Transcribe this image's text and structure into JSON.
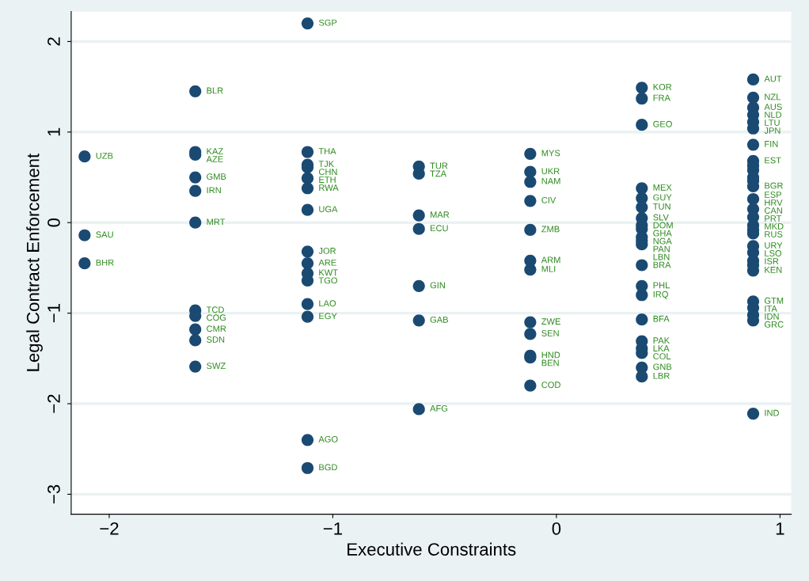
{
  "chart_data": {
    "type": "scatter",
    "xlabel": "Executive Constraints",
    "ylabel": "Legal Contract Enforcement",
    "xlim": [
      -2.17,
      1.05
    ],
    "ylim": [
      -3.22,
      2.33
    ],
    "xticks": [
      {
        "value": -2,
        "label": "−2"
      },
      {
        "value": -1,
        "label": "−1"
      },
      0,
      1
    ],
    "yticks": [
      {
        "value": -3,
        "label": "−3"
      },
      {
        "value": -2,
        "label": "−2"
      },
      {
        "value": -1,
        "label": "−1"
      },
      0,
      1,
      2
    ],
    "grid": "y",
    "marker": "circle",
    "series": [
      {
        "color": "#1a4a72",
        "x": [
          -2.11,
          -2.11,
          -2.11,
          -1.615,
          -1.615,
          -1.615,
          -1.615,
          -1.615,
          -1.615,
          -1.615,
          -1.615,
          -1.615,
          -1.615,
          -1.615,
          -1.113,
          -1.113,
          -1.113,
          -1.113,
          -1.113,
          -1.113,
          -1.113,
          -1.113,
          -1.113,
          -1.113,
          -1.113,
          -1.113,
          -1.113,
          -1.113,
          -1.113,
          -0.615,
          -0.615,
          -0.615,
          -0.615,
          -0.615,
          -0.615,
          -0.615,
          -0.117,
          -0.117,
          -0.117,
          -0.117,
          -0.117,
          -0.117,
          -0.117,
          -0.117,
          -0.117,
          -0.117,
          -0.117,
          -0.117,
          0.382,
          0.382,
          0.382,
          0.382,
          0.382,
          0.382,
          0.382,
          0.382,
          0.382,
          0.382,
          0.382,
          0.382,
          0.382,
          0.382,
          0.382,
          0.382,
          0.382,
          0.382,
          0.382,
          0.382,
          0.382,
          0.88,
          0.88,
          0.88,
          0.88,
          0.88,
          0.88,
          0.88,
          0.88,
          0.88,
          0.88,
          0.88,
          0.88,
          0.88,
          0.88,
          0.88,
          0.88,
          0.88,
          0.88,
          0.88,
          0.88,
          0.88,
          0.88,
          0.88,
          0.88,
          0.88,
          0.88,
          0.88,
          0.88,
          0.88
        ],
        "values": [
          0.73,
          -0.14,
          -0.45,
          1.45,
          0.78,
          0.75,
          0.5,
          0.35,
          0.0,
          -0.97,
          -1.03,
          -1.18,
          -1.3,
          -1.59,
          2.2,
          0.78,
          0.64,
          0.61,
          0.49,
          0.38,
          0.14,
          -0.32,
          -0.45,
          -0.56,
          -0.64,
          -0.9,
          -1.04,
          -2.4,
          -2.71,
          0.62,
          0.54,
          0.08,
          -0.07,
          -0.7,
          -1.08,
          -2.06,
          0.76,
          0.56,
          0.45,
          0.24,
          -0.08,
          -0.42,
          -0.52,
          -1.1,
          -1.23,
          -1.47,
          -1.49,
          -1.8,
          1.49,
          1.37,
          1.08,
          0.38,
          0.27,
          0.17,
          0.05,
          -0.03,
          -0.07,
          -0.16,
          -0.24,
          -0.47,
          -0.7,
          -0.8,
          -1.07,
          -1.31,
          -1.39,
          -1.44,
          -1.6,
          -1.7,
          -0.2,
          1.58,
          1.38,
          1.27,
          1.19,
          1.04,
          0.86,
          0.68,
          0.58,
          0.5,
          0.4,
          0.26,
          0.15,
          0.06,
          -0.03,
          -0.12,
          -0.26,
          -0.33,
          -0.42,
          -0.53,
          -0.87,
          -0.94,
          -1.02,
          -1.08,
          -2.11,
          1.11,
          0.63,
          0.46,
          -0.08,
          -0.47
        ]
      }
    ],
    "annotations": [
      {
        "text": "UZB",
        "x": -2.11,
        "y": 0.73
      },
      {
        "text": "SAU",
        "x": -2.11,
        "y": -0.14
      },
      {
        "text": "BHR",
        "x": -2.11,
        "y": -0.45
      },
      {
        "text": "BLR",
        "x": -1.615,
        "y": 1.45
      },
      {
        "text": "KAZ",
        "x": -1.615,
        "y": 0.78
      },
      {
        "text": "AZE",
        "x": -1.615,
        "y": 0.75
      },
      {
        "text": "GMB",
        "x": -1.615,
        "y": 0.5
      },
      {
        "text": "IRN",
        "x": -1.615,
        "y": 0.35
      },
      {
        "text": "MRT",
        "x": -1.615,
        "y": 0.0
      },
      {
        "text": "TCD",
        "x": -1.615,
        "y": -0.97
      },
      {
        "text": "COG",
        "x": -1.615,
        "y": -1.03
      },
      {
        "text": "CMR",
        "x": -1.615,
        "y": -1.18
      },
      {
        "text": "SDN",
        "x": -1.615,
        "y": -1.3
      },
      {
        "text": "SWZ",
        "x": -1.615,
        "y": -1.59
      },
      {
        "text": "SGP",
        "x": -1.113,
        "y": 2.2
      },
      {
        "text": "THA",
        "x": -1.113,
        "y": 0.78
      },
      {
        "text": "TJK",
        "x": -1.113,
        "y": 0.64
      },
      {
        "text": "CHN",
        "x": -1.113,
        "y": 0.61
      },
      {
        "text": "ETH",
        "x": -1.113,
        "y": 0.49
      },
      {
        "text": "RWA",
        "x": -1.113,
        "y": 0.38
      },
      {
        "text": "UGA",
        "x": -1.113,
        "y": 0.14
      },
      {
        "text": "JOR",
        "x": -1.113,
        "y": -0.32
      },
      {
        "text": "ARE",
        "x": -1.113,
        "y": -0.45
      },
      {
        "text": "KWT",
        "x": -1.113,
        "y": -0.56
      },
      {
        "text": "TGO",
        "x": -1.113,
        "y": -0.64
      },
      {
        "text": "LAO",
        "x": -1.113,
        "y": -0.9
      },
      {
        "text": "EGY",
        "x": -1.113,
        "y": -1.04
      },
      {
        "text": "AGO",
        "x": -1.113,
        "y": -2.4
      },
      {
        "text": "BGD",
        "x": -1.113,
        "y": -2.71
      },
      {
        "text": "TUR",
        "x": -0.615,
        "y": 0.62
      },
      {
        "text": "TZA",
        "x": -0.615,
        "y": 0.54
      },
      {
        "text": "MAR",
        "x": -0.615,
        "y": 0.08
      },
      {
        "text": "ECU",
        "x": -0.615,
        "y": -0.07
      },
      {
        "text": "GIN",
        "x": -0.615,
        "y": -0.7
      },
      {
        "text": "GAB",
        "x": -0.615,
        "y": -1.08
      },
      {
        "text": "AFG",
        "x": -0.615,
        "y": -2.06
      },
      {
        "text": "MYS",
        "x": -0.117,
        "y": 0.76
      },
      {
        "text": "UKR",
        "x": -0.117,
        "y": 0.56
      },
      {
        "text": "NAM",
        "x": -0.117,
        "y": 0.45
      },
      {
        "text": "CIV",
        "x": -0.117,
        "y": 0.24
      },
      {
        "text": "ZMB",
        "x": -0.117,
        "y": -0.08
      },
      {
        "text": "ARM",
        "x": -0.117,
        "y": -0.42
      },
      {
        "text": "MLI",
        "x": -0.117,
        "y": -0.52
      },
      {
        "text": "ZWE",
        "x": -0.117,
        "y": -1.1
      },
      {
        "text": "SEN",
        "x": -0.117,
        "y": -1.23
      },
      {
        "text": "HND",
        "x": -0.117,
        "y": -1.47
      },
      {
        "text": "BEN",
        "x": -0.117,
        "y": -1.49
      },
      {
        "text": "COD",
        "x": -0.117,
        "y": -1.8
      },
      {
        "text": "KOR",
        "x": 0.382,
        "y": 1.49
      },
      {
        "text": "FRA",
        "x": 0.382,
        "y": 1.37
      },
      {
        "text": "GEO",
        "x": 0.382,
        "y": 1.08
      },
      {
        "text": "MEX",
        "x": 0.382,
        "y": 0.38
      },
      {
        "text": "GUY",
        "x": 0.382,
        "y": 0.27
      },
      {
        "text": "TUN",
        "x": 0.382,
        "y": 0.17
      },
      {
        "text": "SLV",
        "x": 0.382,
        "y": 0.05
      },
      {
        "text": "DOM",
        "x": 0.382,
        "y": -0.03
      },
      {
        "text": "GHA",
        "x": 0.382,
        "y": -0.07
      },
      {
        "text": "NGA",
        "x": 0.382,
        "y": -0.16
      },
      {
        "text": "LBN",
        "x": 0.382,
        "y": -0.24
      },
      {
        "text": "BRA",
        "x": 0.382,
        "y": -0.47
      },
      {
        "text": "PHL",
        "x": 0.382,
        "y": -0.7
      },
      {
        "text": "IRQ",
        "x": 0.382,
        "y": -0.8
      },
      {
        "text": "BFA",
        "x": 0.382,
        "y": -1.07
      },
      {
        "text": "PAK",
        "x": 0.382,
        "y": -1.31
      },
      {
        "text": "LKA",
        "x": 0.382,
        "y": -1.39
      },
      {
        "text": "COL",
        "x": 0.382,
        "y": -1.44
      },
      {
        "text": "GNB",
        "x": 0.382,
        "y": -1.6
      },
      {
        "text": "LBR",
        "x": 0.382,
        "y": -1.7
      },
      {
        "text": "PAN",
        "x": 0.382,
        "y": -0.2
      },
      {
        "text": "AUT",
        "x": 0.88,
        "y": 1.58
      },
      {
        "text": "NZL",
        "x": 0.88,
        "y": 1.38
      },
      {
        "text": "AUS",
        "x": 0.88,
        "y": 1.27
      },
      {
        "text": "NLD",
        "x": 0.88,
        "y": 1.19
      },
      {
        "text": "JPN",
        "x": 0.88,
        "y": 1.04
      },
      {
        "text": "FIN",
        "x": 0.88,
        "y": 0.86
      },
      {
        "text": "EST",
        "x": 0.88,
        "y": 0.68
      },
      {
        "text": "BGR",
        "x": 0.88,
        "y": 0.4
      },
      {
        "text": "HRV",
        "x": 0.88,
        "y": 0.26
      },
      {
        "text": "CAN",
        "x": 0.88,
        "y": 0.15
      },
      {
        "text": "PRT",
        "x": 0.88,
        "y": 0.06
      },
      {
        "text": "MKD",
        "x": 0.88,
        "y": -0.03
      },
      {
        "text": "RUS",
        "x": 0.88,
        "y": -0.12
      },
      {
        "text": "URY",
        "x": 0.88,
        "y": -0.26
      },
      {
        "text": "LSO",
        "x": 0.88,
        "y": -0.33
      },
      {
        "text": "ISR",
        "x": 0.88,
        "y": -0.42
      },
      {
        "text": "KEN",
        "x": 0.88,
        "y": -0.53
      },
      {
        "text": "GTM",
        "x": 0.88,
        "y": -0.87
      },
      {
        "text": "ITA",
        "x": 0.88,
        "y": -0.94
      },
      {
        "text": "IDN",
        "x": 0.88,
        "y": -1.02
      },
      {
        "text": "GRC",
        "x": 0.88,
        "y": -1.08
      },
      {
        "text": "IND",
        "x": 0.88,
        "y": -2.11
      },
      {
        "text": "LTU",
        "x": 0.88,
        "y": 1.11
      },
      {
        "text": "ESP",
        "x": 0.88,
        "y": 0.3
      }
    ]
  }
}
